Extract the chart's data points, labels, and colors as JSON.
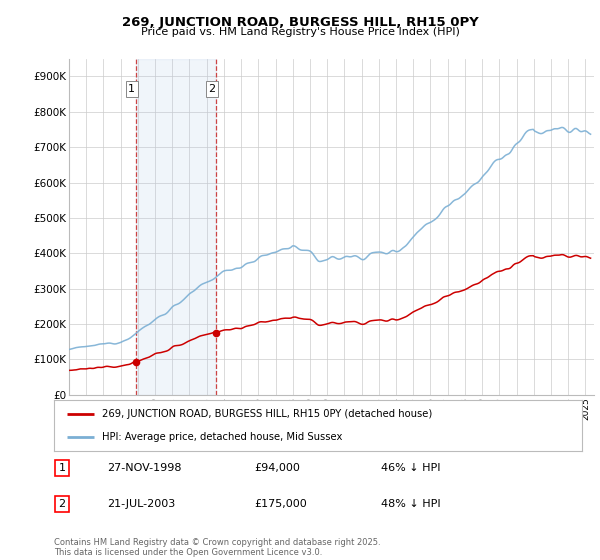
{
  "title": "269, JUNCTION ROAD, BURGESS HILL, RH15 0PY",
  "subtitle": "Price paid vs. HM Land Registry's House Price Index (HPI)",
  "ylim": [
    0,
    950000
  ],
  "yticks": [
    0,
    100000,
    200000,
    300000,
    400000,
    500000,
    600000,
    700000,
    800000,
    900000
  ],
  "ytick_labels": [
    "£0",
    "£100K",
    "£200K",
    "£300K",
    "£400K",
    "£500K",
    "£600K",
    "£700K",
    "£800K",
    "£900K"
  ],
  "background_color": "#ffffff",
  "plot_bg_color": "#ffffff",
  "grid_color": "#cccccc",
  "line1_color": "#cc0000",
  "line2_color": "#7bafd4",
  "line1_label": "269, JUNCTION ROAD, BURGESS HILL, RH15 0PY (detached house)",
  "line2_label": "HPI: Average price, detached house, Mid Sussex",
  "transaction1_date": "27-NOV-1998",
  "transaction1_price": "£94,000",
  "transaction1_pct": "46% ↓ HPI",
  "transaction2_date": "21-JUL-2003",
  "transaction2_price": "£175,000",
  "transaction2_pct": "48% ↓ HPI",
  "copyright": "Contains HM Land Registry data © Crown copyright and database right 2025.\nThis data is licensed under the Open Government Licence v3.0.",
  "sale1_x": 1998.9,
  "sale1_y": 94000,
  "sale2_x": 2003.55,
  "sale2_y": 175000,
  "vline1_x": 1998.9,
  "vline2_x": 2003.55,
  "shade_xmin": 1998.9,
  "shade_xmax": 2003.55,
  "xlim_min": 1995.0,
  "xlim_max": 2025.5
}
